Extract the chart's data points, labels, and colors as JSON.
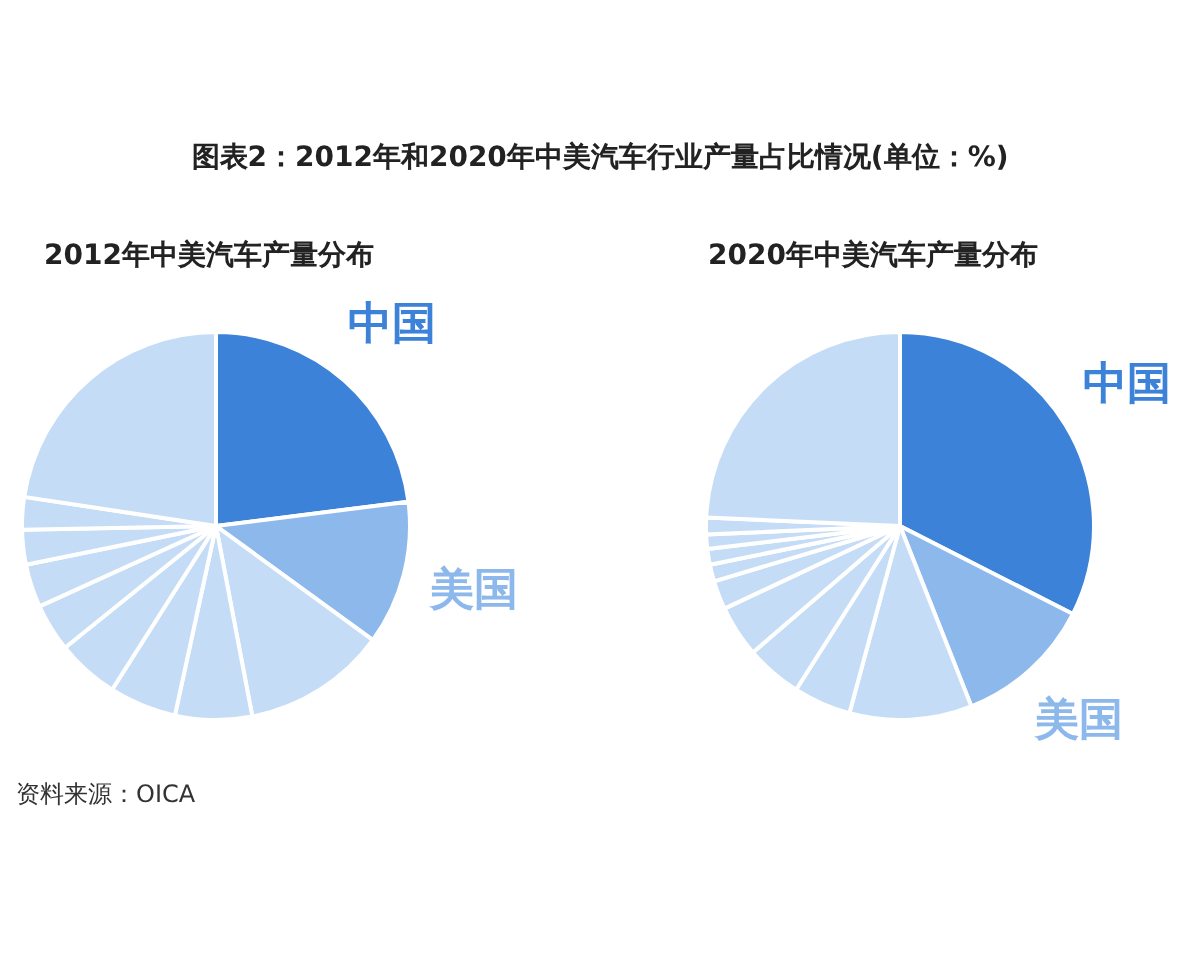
{
  "chart_data": [
    {
      "type": "pie",
      "title": "图表2：2012年和2020年中美汽车行业产量占比情况(单位：%)",
      "subtitle": "2012年中美汽车产量分布",
      "categories": [
        "中国",
        "美国",
        null,
        null,
        null,
        null,
        null,
        null,
        null,
        null,
        null
      ],
      "values": [
        23,
        12,
        12,
        6.4,
        5.6,
        5.2,
        4,
        3.6,
        2.9,
        2.7,
        22.6
      ],
      "colors": [
        "#3b82d8",
        "#8db8ec",
        "#c5dcf7",
        "#c5dcf7",
        "#c5dcf7",
        "#c5dcf7",
        "#c5dcf7",
        "#c5dcf7",
        "#c5dcf7",
        "#c5dcf7",
        "#c5dcf7"
      ],
      "annotations": [
        "资料来源：OICA"
      ]
    },
    {
      "type": "pie",
      "subtitle": "2020年中美汽车产量分布",
      "categories": [
        "中国",
        "美国",
        null,
        null,
        null,
        null,
        null,
        null,
        null,
        null,
        null,
        null
      ],
      "values": [
        32.5,
        11.5,
        10.2,
        4.8,
        4.7,
        4.3,
        2.4,
        1.4,
        1.3,
        1.2,
        1.4,
        24.3
      ],
      "colors": [
        "#3b82d8",
        "#8db8ec",
        "#c5dcf7",
        "#c5dcf7",
        "#c5dcf7",
        "#c5dcf7",
        "#c5dcf7",
        "#c5dcf7",
        "#c5dcf7",
        "#c5dcf7",
        "#c5dcf7",
        "#c5dcf7"
      ]
    }
  ]
}
